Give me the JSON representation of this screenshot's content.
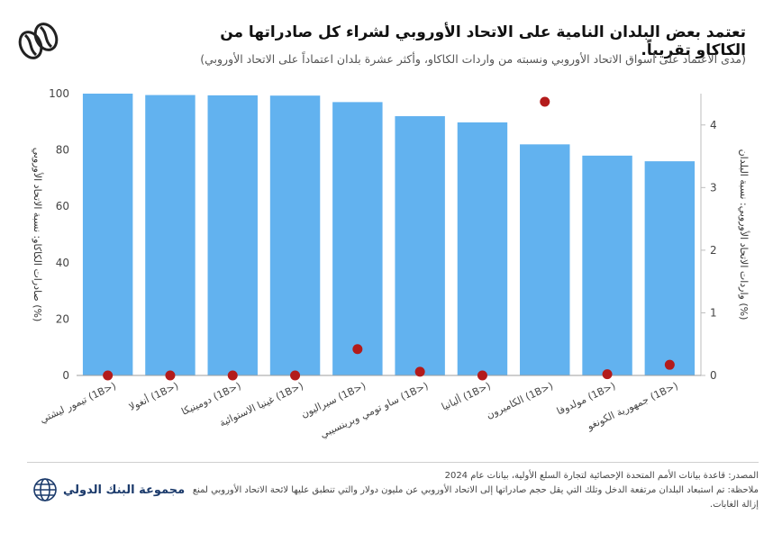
{
  "header": {
    "title": "تعتمد بعض البلدان النامية على الاتحاد الأوروبي لشراء كل صادراتها من الكاكاو تقريباً.",
    "subtitle": "(مدى الاعتماد على أسواق الاتحاد الأوروبي ونسبته من واردات الكاكاو، وأكثر عشرة بلدان اعتماداً على الاتحاد الأوروبي)",
    "icon": "coffee-bean-icon"
  },
  "chart_data": {
    "type": "bar",
    "categories": [
      "تيمور ليشتي (1B>)",
      "أنغولا (1B>)",
      "دومينيكا (1B>)",
      "غينيا الاستوائية (1B>)",
      "سيراليون (1B>)",
      "ساو تومي وبرينسيبي (1B>)",
      "ألبانيا (1B>)",
      "الكاميرون (1B>)",
      "مولدوفا (1B>)",
      "جمهورية الكونغو (1B>)"
    ],
    "series": [
      {
        "values": [
          100,
          99.5,
          99.4,
          99.3,
          97,
          92,
          89.8,
          82,
          78,
          76
        ],
        "color": "#62b2ef",
        "axis": "left"
      },
      {
        "values": [
          0,
          0,
          0,
          0,
          0.42,
          0.06,
          0,
          4.37,
          0.02,
          0.17
        ],
        "color": "#b31b1b",
        "axis": "right"
      }
    ],
    "y_left": {
      "label": "صادرات الكاكاو: نسبة الاتحاد الأوروبي (%)",
      "lim": [
        0,
        100
      ],
      "ticks": [
        0,
        20,
        40,
        60,
        80,
        100
      ]
    },
    "y_right": {
      "label": "واردات الاتحاد الأوروبي: نسبة البلدان (%)",
      "lim": [
        0,
        4.5
      ],
      "ticks": [
        0,
        1,
        2,
        3,
        4
      ]
    },
    "grid": false,
    "legend": "none"
  },
  "footer": {
    "source": "المصدر: قاعدة بيانات الأمم المتحدة الإحصائية لتجارة السلع الأولية، بيانات عام 2024",
    "note": "ملاحظة: تم استبعاد البلدان مرتفعة الدخل وتلك التي يقل حجم صادراتها إلى الاتحاد الأوروبي عن مليون دولار والتي تنطبق عليها لائحة الاتحاد الأوروبي لمنع إزالة الغابات.",
    "brand": "مجموعة البنك الدولي"
  }
}
